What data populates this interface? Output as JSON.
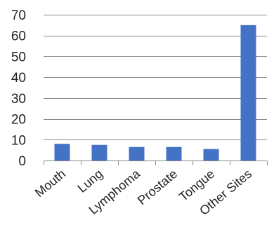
{
  "chart_data": {
    "type": "bar",
    "categories": [
      "Mouth",
      "Lung",
      "Lymphoma",
      "Prostate",
      "Tongue",
      "Other Sites"
    ],
    "values": [
      8,
      7.5,
      6.5,
      6.5,
      5.5,
      65
    ],
    "title": "",
    "xlabel": "",
    "ylabel": "",
    "ylim": [
      0,
      70
    ],
    "yticks": [
      0,
      10,
      20,
      30,
      40,
      50,
      60,
      70
    ],
    "grid": true,
    "legend": "none",
    "bar_color": "#4472C4"
  }
}
